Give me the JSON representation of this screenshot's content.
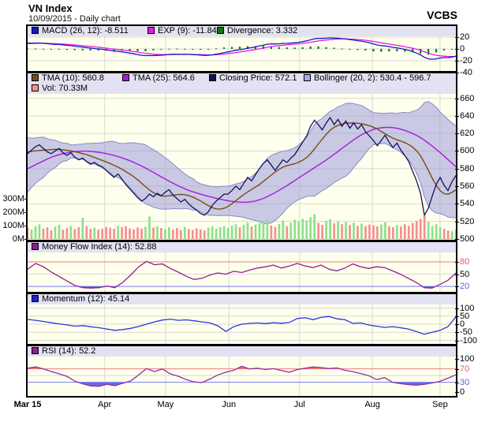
{
  "header": {
    "title": "VN Index",
    "subtitle": "10/09/2015 - Daily chart",
    "brand": "VCBS"
  },
  "colors": {
    "macd_line": "#1616CC",
    "macd_signal": "#E818E8",
    "macd_hist": "#0B7A0B",
    "tma10": "#7A4A16",
    "tma25": "#A818E0",
    "close_line": "#12125E",
    "bollinger_fill": "#9494D8",
    "bollinger_edge": "#8888CC",
    "vol_up": "#8CE08C",
    "vol_down": "#F49090",
    "mfi_line": "#8C2090",
    "momentum_line": "#2838E0",
    "rsi_line": "#9030A0",
    "threshold_high": "#F07878",
    "threshold_low": "#7878F0",
    "panel_bg": "#FFFFEE",
    "legend_bg": "#E2E2F2",
    "grid": "#D9D9CE"
  },
  "panels": {
    "macd": {
      "legend": [
        {
          "label": "MACD (26, 12): -8.511",
          "color": "#1616CC"
        },
        {
          "label": "EXP (9): -11.84",
          "color": "#E818E8"
        },
        {
          "label": "Divergence: 3.332",
          "color": "#0B7A0B"
        }
      ],
      "ticks": [
        {
          "label": "20",
          "v": 20
        },
        {
          "label": "0",
          "v": 0
        },
        {
          "label": "-20",
          "v": -20
        },
        {
          "label": "-40",
          "v": -40
        }
      ]
    },
    "main": {
      "legend": [
        {
          "label": "TMA (10): 560.8",
          "color": "#7A4A16"
        },
        {
          "label": "TMA (25): 564.6",
          "color": "#A818E0"
        },
        {
          "label": "Closing Price: 572.1",
          "color": "#12125E"
        },
        {
          "label": "Bollinger (20, 2): 530.4 - 596.7",
          "color": "#A8A8E8"
        }
      ],
      "legend2": [
        {
          "label": "Vol: 70.33M",
          "color": "#F49090"
        }
      ],
      "ticks": [
        {
          "label": "660",
          "v": 660
        },
        {
          "label": "640",
          "v": 640
        },
        {
          "label": "620",
          "v": 620
        },
        {
          "label": "600",
          "v": 600
        },
        {
          "label": "580",
          "v": 580
        },
        {
          "label": "560",
          "v": 560
        },
        {
          "label": "540",
          "v": 540
        },
        {
          "label": "520",
          "v": 520
        },
        {
          "label": "500",
          "v": 500
        }
      ],
      "vol_ticks": [
        {
          "label": "300M",
          "v": 300
        },
        {
          "label": "200M",
          "v": 200
        },
        {
          "label": "100M",
          "v": 100
        },
        {
          "label": "0M",
          "v": 0
        }
      ]
    },
    "mfi": {
      "legend": [
        {
          "label": "Money Flow Index (14): 52.88",
          "color": "#8C2090"
        }
      ],
      "ticks": [
        {
          "label": "80",
          "v": 80,
          "color": "#E06060"
        },
        {
          "label": "50",
          "v": 50
        },
        {
          "label": "20",
          "v": 20,
          "color": "#6060E0"
        }
      ]
    },
    "momentum": {
      "legend": [
        {
          "label": "Momentum (12): 45.14",
          "color": "#2020E0"
        }
      ],
      "ticks": [
        {
          "label": "100",
          "v": 100
        },
        {
          "label": "50",
          "v": 50
        },
        {
          "label": "0",
          "v": 0
        },
        {
          "label": "-50",
          "v": -50
        },
        {
          "label": "-100",
          "v": -100
        }
      ]
    },
    "rsi": {
      "legend": [
        {
          "label": "RSI (14): 52.2",
          "color": "#902090"
        }
      ],
      "ticks": [
        {
          "label": "100",
          "v": 100
        },
        {
          "label": "70",
          "v": 70,
          "color": "#E06060"
        },
        {
          "label": "30",
          "v": 30,
          "color": "#6060E0"
        },
        {
          "label": "0",
          "v": 0
        }
      ]
    }
  },
  "x_axis": {
    "labels": [
      {
        "text": "Mar 15",
        "t": 0.0,
        "bold": true
      },
      {
        "text": "Apr",
        "t": 0.18
      },
      {
        "text": "May",
        "t": 0.322
      },
      {
        "text": "Jun",
        "t": 0.47
      },
      {
        "text": "Jul",
        "t": 0.635
      },
      {
        "text": "Aug",
        "t": 0.805
      },
      {
        "text": "Sep",
        "t": 0.963
      }
    ],
    "month_gridlines_t": [
      0.18,
      0.322,
      0.47,
      0.635,
      0.805,
      0.963
    ]
  },
  "chart_data": [
    {
      "id": "price_volume",
      "type": "line",
      "title": "VN Index daily close with TMA(10), TMA(25), Bollinger(20,2) and volume",
      "ylim": [
        499,
        665
      ],
      "current": {
        "tma10": 560.8,
        "tma25": 564.6,
        "close": 572.1,
        "bollinger_low": 530.4,
        "bollinger_high": 596.7,
        "vol_m": 70.33
      },
      "warmup_close": [
        560,
        552,
        558,
        565,
        571,
        566,
        574,
        580,
        575,
        583,
        590,
        585,
        592,
        598,
        594,
        600,
        605,
        599,
        603,
        598
      ],
      "close": [
        597,
        601,
        605,
        607,
        603,
        599,
        597,
        600,
        603,
        598,
        595,
        598,
        593,
        590,
        592,
        588,
        585,
        587,
        584,
        582,
        578,
        574,
        570,
        574,
        568,
        562,
        557,
        552,
        547,
        543,
        546,
        551,
        548,
        552,
        549,
        553,
        556,
        550,
        546,
        542,
        545,
        540,
        536,
        533,
        529,
        527,
        531,
        538,
        543,
        547,
        551,
        551,
        555,
        560,
        556,
        563,
        570,
        566,
        573,
        580,
        586,
        590,
        584,
        578,
        584,
        590,
        587,
        592,
        596,
        603,
        610,
        617,
        628,
        635,
        630,
        624,
        632,
        638,
        630,
        636,
        628,
        634,
        626,
        632,
        625,
        630,
        622,
        617,
        612,
        606,
        612,
        618,
        610,
        604,
        609,
        601,
        595,
        588,
        577,
        566,
        552,
        527,
        535,
        549,
        562,
        570,
        561,
        555,
        565,
        572.1
      ],
      "volume_m": [
        85,
        72,
        95,
        110,
        78,
        88,
        65,
        92,
        105,
        70,
        82,
        96,
        74,
        88,
        158,
        96,
        76,
        84,
        70,
        77,
        90,
        84,
        76,
        98,
        88,
        95,
        80,
        72,
        86,
        78,
        92,
        168,
        85,
        94,
        82,
        75,
        88,
        70,
        82,
        66,
        90,
        74,
        68,
        80,
        72,
        64,
        85,
        95,
        78,
        88,
        96,
        84,
        98,
        110,
        86,
        105,
        122,
        92,
        108,
        118,
        132,
        145,
        100,
        90,
        112,
        138,
        95,
        120,
        142,
        130,
        150,
        138,
        162,
        185,
        120,
        105,
        135,
        148,
        118,
        132,
        110,
        126,
        104,
        122,
        98,
        115,
        96,
        108,
        102,
        94,
        108,
        125,
        96,
        88,
        104,
        92,
        110,
        98,
        120,
        135,
        150,
        172,
        128,
        96,
        110,
        88,
        76,
        64,
        58,
        70.33
      ]
    },
    {
      "id": "macd",
      "type": "line",
      "title": "MACD (26,12) with EXP(9) signal and divergence histogram, derived from close",
      "ylim": [
        -44,
        24
      ],
      "current": {
        "macd": -8.511,
        "exp": -11.84,
        "divergence": 3.332
      }
    },
    {
      "id": "mfi",
      "type": "line",
      "title": "Money Flow Index (14)",
      "ylim": [
        0,
        100
      ],
      "thresholds": {
        "high": 80,
        "low": 20
      },
      "current": 52.88,
      "values": [
        62,
        76,
        68,
        55,
        44,
        33,
        22,
        17,
        16,
        17,
        21,
        17,
        30,
        48,
        68,
        81,
        73,
        75,
        64,
        55,
        45,
        37,
        40,
        48,
        53,
        50,
        57,
        54,
        60,
        65,
        68,
        72,
        65,
        70,
        76,
        70,
        66,
        72,
        62,
        58,
        65,
        75,
        68,
        64,
        68,
        66,
        58,
        50,
        40,
        30,
        17,
        16,
        25,
        35,
        52.88
      ]
    },
    {
      "id": "momentum",
      "type": "line",
      "title": "Momentum (12)",
      "ylim": [
        -122,
        122
      ],
      "current": 45.14,
      "values": [
        30,
        24,
        17,
        9,
        2,
        -5,
        -12,
        -9,
        -16,
        -22,
        -30,
        -38,
        -33,
        -26,
        -14,
        0,
        14,
        26,
        31,
        24,
        27,
        21,
        14,
        8,
        -10,
        -45,
        -15,
        0,
        5,
        8,
        4,
        9,
        6,
        10,
        35,
        40,
        28,
        42,
        48,
        33,
        28,
        5,
        8,
        -5,
        -12,
        -20,
        -15,
        -22,
        -30,
        -45,
        -62,
        -50,
        -38,
        -15,
        45.14
      ]
    },
    {
      "id": "rsi",
      "type": "line",
      "title": "RSI (14)",
      "ylim": [
        0,
        100
      ],
      "thresholds": {
        "high": 70,
        "low": 30
      },
      "current": 52.2,
      "values": [
        72,
        76,
        70,
        62,
        55,
        47,
        33,
        25,
        19,
        18,
        24,
        20,
        27,
        34,
        52,
        71,
        62,
        70,
        55,
        48,
        38,
        31,
        29,
        40,
        52,
        60,
        66,
        78,
        70,
        72,
        68,
        71,
        65,
        60,
        68,
        72,
        76,
        74,
        71,
        73,
        66,
        62,
        56,
        50,
        38,
        44,
        30,
        26,
        23,
        21,
        24,
        28,
        33,
        42,
        52.2
      ]
    }
  ]
}
